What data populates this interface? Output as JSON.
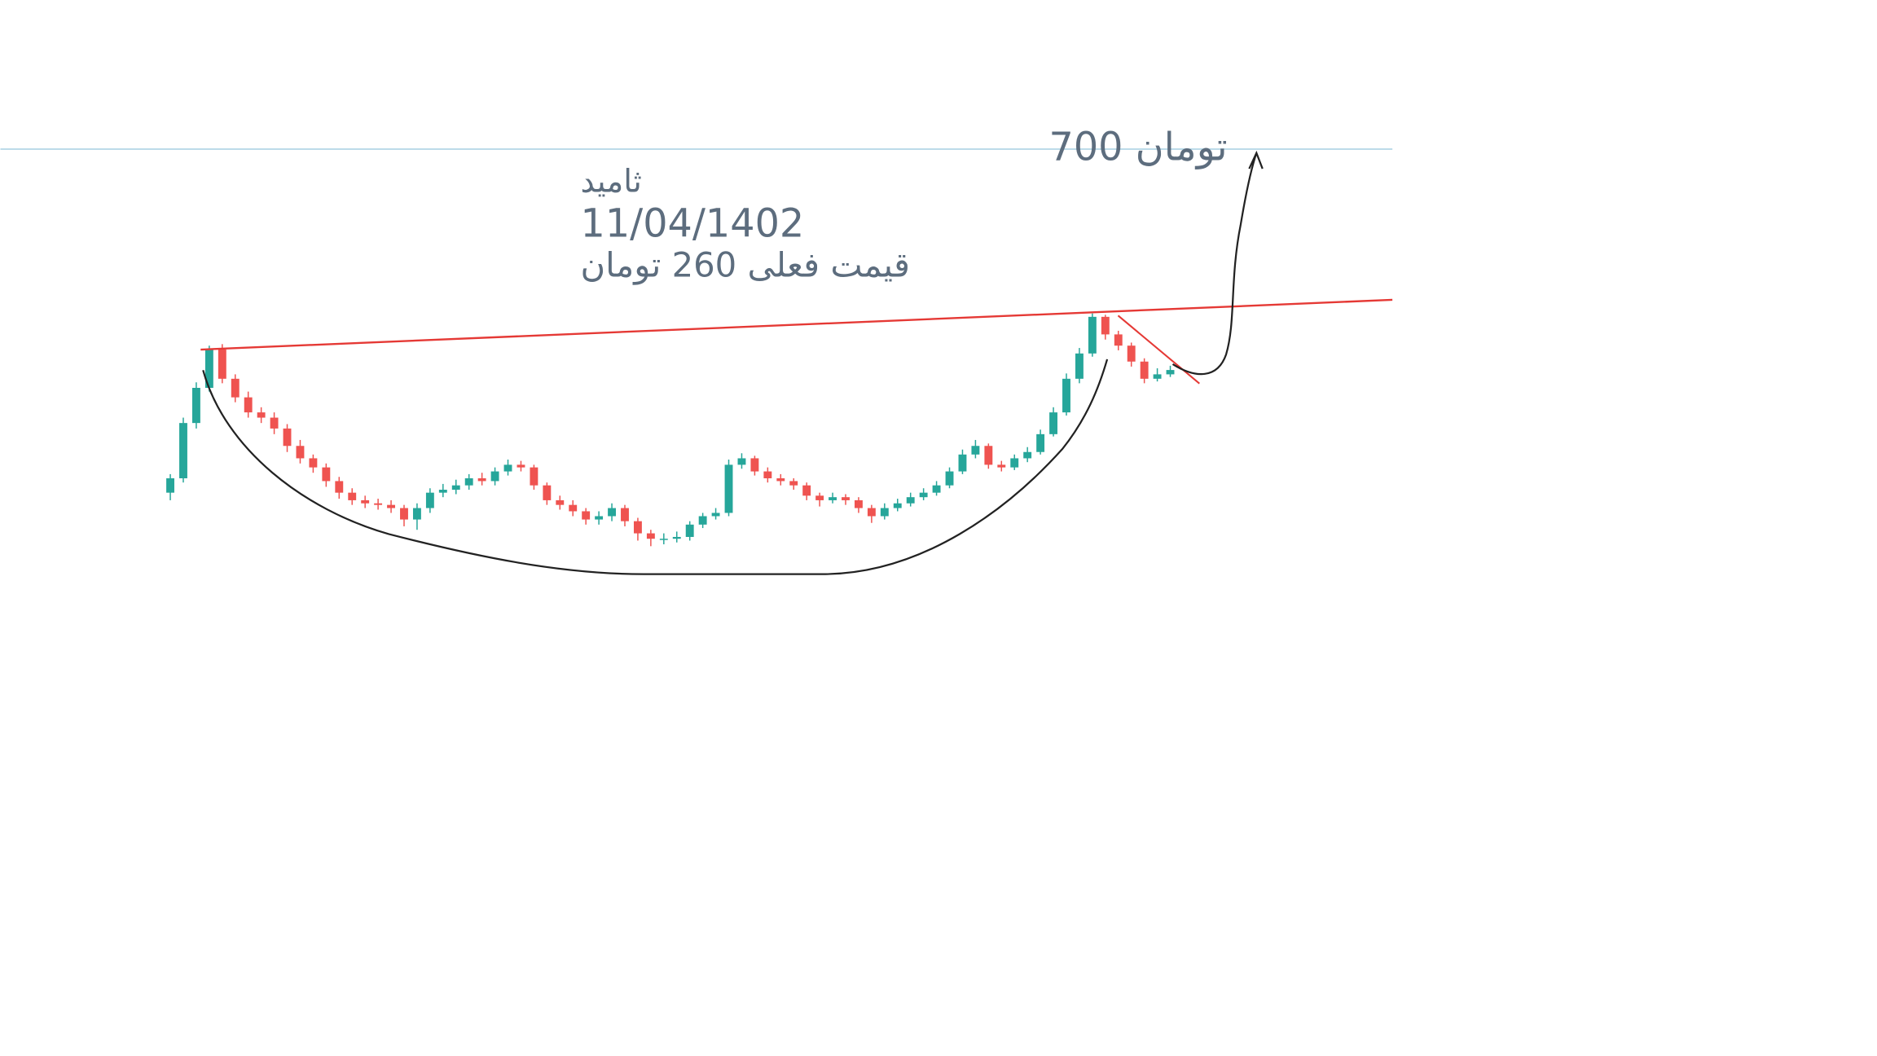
{
  "chart_data": {
    "type": "candlestick",
    "annotations": [
      "ثامید",
      "11/04/1402",
      "قیمت فعلی 260 تومان",
      "700 تومان"
    ],
    "level": 700,
    "log_scale": true,
    "ylim": [
      12,
      1366
    ],
    "up_color": "#26a69a",
    "down_color": "#ef5350",
    "level_color": "#b2d6e6",
    "open": [
      150,
      160,
      205,
      240,
      285,
      250,
      230,
      215,
      210,
      200,
      185,
      175,
      168,
      158,
      150,
      145,
      143,
      142,
      140,
      133,
      140,
      150,
      152,
      155,
      160,
      158,
      165,
      170,
      168,
      155,
      145,
      142,
      138,
      133,
      135,
      140,
      132,
      125,
      122,
      122,
      123,
      130,
      135,
      137,
      170,
      175,
      165,
      160,
      158,
      155,
      148,
      145,
      147,
      145,
      140,
      135,
      140,
      143,
      147,
      150,
      155,
      165,
      178,
      185,
      170,
      168,
      175,
      180,
      195,
      215,
      250,
      280,
      330,
      305,
      290,
      270,
      250,
      255
    ],
    "high": [
      163,
      210,
      246,
      290,
      292,
      255,
      236,
      220,
      215,
      204,
      190,
      178,
      171,
      161,
      153,
      148,
      146,
      145,
      142,
      143,
      153,
      156,
      159,
      163,
      164,
      168,
      174,
      173,
      170,
      157,
      148,
      145,
      140,
      138,
      143,
      142,
      134,
      127,
      125,
      126,
      132,
      137,
      140,
      174,
      179,
      177,
      168,
      163,
      160,
      157,
      150,
      150,
      149,
      147,
      142,
      143,
      146,
      150,
      153,
      158,
      168,
      182,
      190,
      187,
      173,
      178,
      184,
      199,
      220,
      256,
      287,
      335,
      333,
      310,
      294,
      274,
      262,
      265
    ],
    "low": [
      145,
      157,
      200,
      236,
      245,
      225,
      210,
      205,
      195,
      180,
      171,
      164,
      154,
      146,
      142,
      140,
      139,
      137,
      129,
      127,
      137,
      147,
      149,
      152,
      155,
      155,
      162,
      165,
      152,
      142,
      139,
      135,
      130,
      130,
      132,
      129,
      121,
      118,
      119,
      120,
      121,
      128,
      133,
      135,
      167,
      162,
      157,
      155,
      152,
      145,
      141,
      143,
      142,
      137,
      131,
      133,
      138,
      141,
      145,
      148,
      153,
      163,
      175,
      167,
      165,
      166,
      172,
      178,
      193,
      212,
      245,
      276,
      298,
      284,
      264,
      245,
      247,
      252
    ],
    "close": [
      160,
      205,
      240,
      285,
      250,
      230,
      215,
      210,
      200,
      185,
      175,
      168,
      158,
      150,
      145,
      143,
      142,
      140,
      133,
      140,
      150,
      152,
      155,
      160,
      158,
      165,
      170,
      168,
      155,
      145,
      142,
      138,
      133,
      135,
      140,
      132,
      125,
      122,
      122,
      123,
      130,
      135,
      137,
      170,
      175,
      165,
      160,
      158,
      155,
      148,
      145,
      147,
      145,
      140,
      135,
      140,
      143,
      147,
      150,
      155,
      165,
      178,
      185,
      170,
      168,
      175,
      180,
      195,
      215,
      250,
      280,
      330,
      305,
      290,
      270,
      250,
      255,
      260
    ]
  }
}
